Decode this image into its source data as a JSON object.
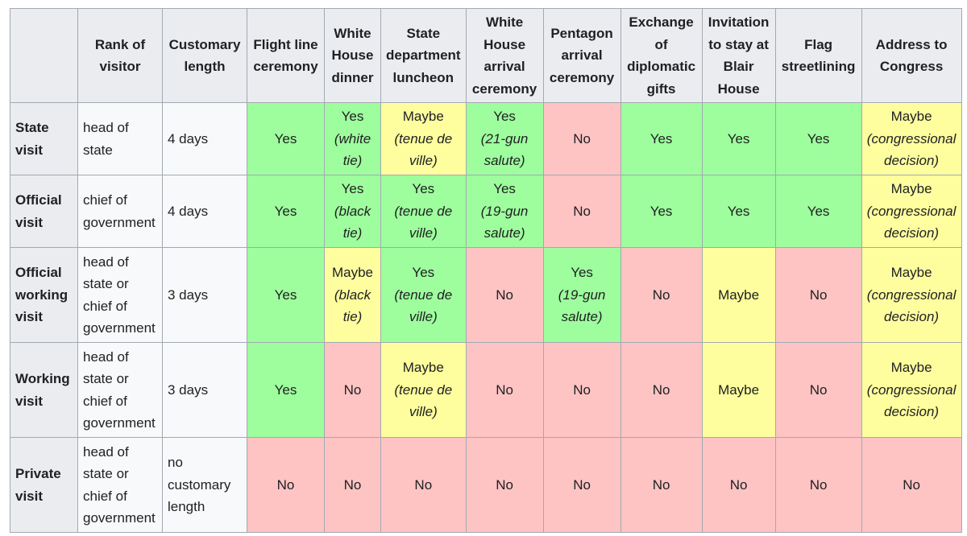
{
  "headers": [
    "",
    "Rank of visitor",
    "Customary length",
    "Flight line ceremony",
    "White House dinner",
    "State department luncheon",
    "White House arrival ceremony",
    "Pentagon arrival ceremony",
    "Exchange of diplomatic gifts",
    "Invitation to stay at Blair House",
    "Flag streetlining",
    "Address to Congress"
  ],
  "rows": [
    {
      "type": "State visit",
      "rank": "head of state",
      "length": "4 days",
      "cells": [
        {
          "status": "yes",
          "main": "Yes",
          "note": ""
        },
        {
          "status": "yes",
          "main": "Yes",
          "note": "(white tie)"
        },
        {
          "status": "maybe",
          "main": "Maybe",
          "note": "(tenue de ville)"
        },
        {
          "status": "yes",
          "main": "Yes",
          "note": "(21-gun salute)"
        },
        {
          "status": "no",
          "main": "No",
          "note": ""
        },
        {
          "status": "yes",
          "main": "Yes",
          "note": ""
        },
        {
          "status": "yes",
          "main": "Yes",
          "note": ""
        },
        {
          "status": "yes",
          "main": "Yes",
          "note": ""
        },
        {
          "status": "maybe",
          "main": "Maybe",
          "note": "(congressional decision)"
        }
      ]
    },
    {
      "type": "Official visit",
      "rank": "chief of government",
      "length": "4 days",
      "cells": [
        {
          "status": "yes",
          "main": "Yes",
          "note": ""
        },
        {
          "status": "yes",
          "main": "Yes",
          "note": "(black tie)"
        },
        {
          "status": "yes",
          "main": "Yes",
          "note": "(tenue de ville)"
        },
        {
          "status": "yes",
          "main": "Yes",
          "note": "(19-gun salute)"
        },
        {
          "status": "no",
          "main": "No",
          "note": ""
        },
        {
          "status": "yes",
          "main": "Yes",
          "note": ""
        },
        {
          "status": "yes",
          "main": "Yes",
          "note": ""
        },
        {
          "status": "yes",
          "main": "Yes",
          "note": ""
        },
        {
          "status": "maybe",
          "main": "Maybe",
          "note": "(congressional decision)"
        }
      ]
    },
    {
      "type": "Official working visit",
      "rank": "head of state or chief of government",
      "length": "3 days",
      "cells": [
        {
          "status": "yes",
          "main": "Yes",
          "note": ""
        },
        {
          "status": "maybe",
          "main": "Maybe",
          "note": "(black tie)"
        },
        {
          "status": "yes",
          "main": "Yes",
          "note": "(tenue de ville)"
        },
        {
          "status": "no",
          "main": "No",
          "note": ""
        },
        {
          "status": "yes",
          "main": "Yes",
          "note": "(19-gun salute)"
        },
        {
          "status": "no",
          "main": "No",
          "note": ""
        },
        {
          "status": "maybe",
          "main": "Maybe",
          "note": ""
        },
        {
          "status": "no",
          "main": "No",
          "note": ""
        },
        {
          "status": "maybe",
          "main": "Maybe",
          "note": "(congressional decision)"
        }
      ]
    },
    {
      "type": "Working visit",
      "rank": "head of state or chief of government",
      "length": "3 days",
      "cells": [
        {
          "status": "yes",
          "main": "Yes",
          "note": ""
        },
        {
          "status": "no",
          "main": "No",
          "note": ""
        },
        {
          "status": "maybe",
          "main": "Maybe",
          "note": "(tenue de ville)"
        },
        {
          "status": "no",
          "main": "No",
          "note": ""
        },
        {
          "status": "no",
          "main": "No",
          "note": ""
        },
        {
          "status": "no",
          "main": "No",
          "note": ""
        },
        {
          "status": "maybe",
          "main": "Maybe",
          "note": ""
        },
        {
          "status": "no",
          "main": "No",
          "note": ""
        },
        {
          "status": "maybe",
          "main": "Maybe",
          "note": "(congressional decision)"
        }
      ]
    },
    {
      "type": "Private visit",
      "rank": "head of state or chief of government",
      "length": "no customary length",
      "cells": [
        {
          "status": "no",
          "main": "No",
          "note": ""
        },
        {
          "status": "no",
          "main": "No",
          "note": ""
        },
        {
          "status": "no",
          "main": "No",
          "note": ""
        },
        {
          "status": "no",
          "main": "No",
          "note": ""
        },
        {
          "status": "no",
          "main": "No",
          "note": ""
        },
        {
          "status": "no",
          "main": "No",
          "note": ""
        },
        {
          "status": "no",
          "main": "No",
          "note": ""
        },
        {
          "status": "no",
          "main": "No",
          "note": ""
        },
        {
          "status": "no",
          "main": "No",
          "note": ""
        }
      ]
    }
  ],
  "colors": {
    "header_bg": "#eaecf0",
    "row_info_bg": "#f8f9fa",
    "border": "#a2a9b1",
    "yes": "#9efe9e",
    "maybe": "#fefe9e",
    "no": "#fec4c4"
  }
}
